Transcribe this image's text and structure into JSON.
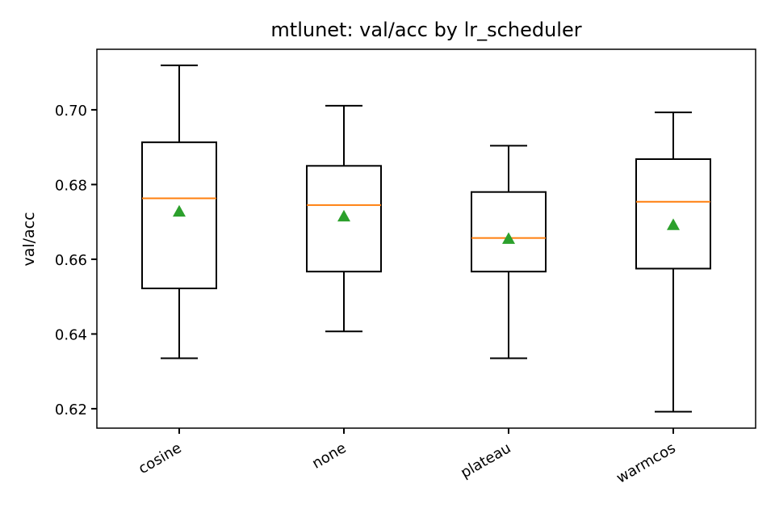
{
  "chart_data": {
    "type": "box",
    "title": "mtlunet: val/acc by lr_scheduler",
    "xlabel": "",
    "ylabel": "val/acc",
    "ylim": [
      0.6148,
      0.7162
    ],
    "yticks": [
      0.62,
      0.64,
      0.66,
      0.68,
      0.7
    ],
    "ytick_labels": [
      "0.62",
      "0.64",
      "0.66",
      "0.68",
      "0.70"
    ],
    "categories": [
      "cosine",
      "none",
      "plateau",
      "warmcos"
    ],
    "boxes": [
      {
        "whisker_low": 0.6335,
        "q1": 0.6522,
        "median": 0.6763,
        "q3": 0.6913,
        "whisker_high": 0.7119,
        "mean": 0.6728
      },
      {
        "whisker_low": 0.6407,
        "q1": 0.6567,
        "median": 0.6745,
        "q3": 0.685,
        "whisker_high": 0.7011,
        "mean": 0.6715
      },
      {
        "whisker_low": 0.6335,
        "q1": 0.6567,
        "median": 0.6657,
        "q3": 0.678,
        "whisker_high": 0.6904,
        "mean": 0.6655
      },
      {
        "whisker_low": 0.6192,
        "q1": 0.6575,
        "median": 0.6754,
        "q3": 0.6868,
        "whisker_high": 0.6993,
        "mean": 0.6692
      }
    ],
    "grid": false,
    "colors": {
      "box": "#000000",
      "median": "#ff7f0e",
      "mean": "#2ca02c"
    }
  }
}
